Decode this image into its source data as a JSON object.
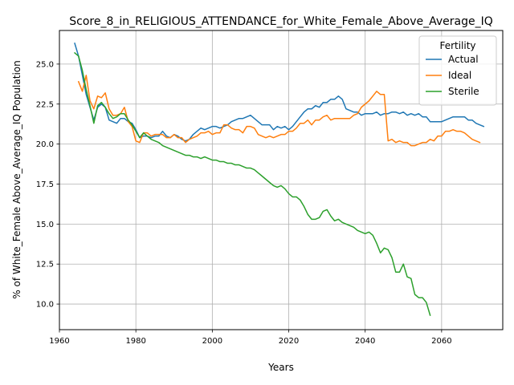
{
  "chart_data": {
    "type": "line",
    "title": "Score_8_in_RELIGIOUS_ATTENDANCE_for_White_Female_Above_Average_IQ",
    "xlabel": "Years",
    "ylabel": "% of White_Female Above_Average_IQ Population",
    "xlim": [
      1960,
      2076
    ],
    "ylim": [
      8.4,
      27.1
    ],
    "xticks": [
      1960,
      1980,
      2000,
      2020,
      2040,
      2060
    ],
    "xtick_labels": [
      "1960",
      "1980",
      "2000",
      "2020",
      "2040",
      "2060"
    ],
    "yticks": [
      10.0,
      12.5,
      15.0,
      17.5,
      20.0,
      22.5,
      25.0
    ],
    "ytick_labels": [
      "10.0",
      "12.5",
      "15.0",
      "17.5",
      "20.0",
      "22.5",
      "25.0"
    ],
    "grid": true,
    "legend": {
      "title": "Fertility",
      "placement": "top-right"
    },
    "series": [
      {
        "name": "Actual",
        "color": "#1f77b4",
        "points": [
          [
            1964,
            26.3
          ],
          [
            1965,
            25.5
          ],
          [
            1966,
            24.3
          ],
          [
            1967,
            23.1
          ],
          [
            1968,
            22.3
          ],
          [
            1969,
            21.5
          ],
          [
            1970,
            22.3
          ],
          [
            1971,
            22.5
          ],
          [
            1972,
            22.3
          ],
          [
            1973,
            21.5
          ],
          [
            1974,
            21.4
          ],
          [
            1975,
            21.3
          ],
          [
            1976,
            21.6
          ],
          [
            1977,
            21.6
          ],
          [
            1978,
            21.4
          ],
          [
            1979,
            21.3
          ],
          [
            1980,
            20.9
          ],
          [
            1981,
            20.4
          ],
          [
            1982,
            20.5
          ],
          [
            1983,
            20.5
          ],
          [
            1984,
            20.4
          ],
          [
            1985,
            20.5
          ],
          [
            1986,
            20.5
          ],
          [
            1987,
            20.8
          ],
          [
            1988,
            20.5
          ],
          [
            1989,
            20.4
          ],
          [
            1990,
            20.6
          ],
          [
            1991,
            20.5
          ],
          [
            1992,
            20.3
          ],
          [
            1993,
            20.2
          ],
          [
            1994,
            20.3
          ],
          [
            1995,
            20.6
          ],
          [
            1996,
            20.8
          ],
          [
            1997,
            21.0
          ],
          [
            1998,
            20.9
          ],
          [
            1999,
            21.0
          ],
          [
            2000,
            21.1
          ],
          [
            2001,
            21.1
          ],
          [
            2002,
            21.0
          ],
          [
            2003,
            21.1
          ],
          [
            2004,
            21.2
          ],
          [
            2005,
            21.4
          ],
          [
            2006,
            21.5
          ],
          [
            2007,
            21.6
          ],
          [
            2008,
            21.6
          ],
          [
            2009,
            21.7
          ],
          [
            2010,
            21.8
          ],
          [
            2011,
            21.6
          ],
          [
            2012,
            21.4
          ],
          [
            2013,
            21.2
          ],
          [
            2014,
            21.2
          ],
          [
            2015,
            21.2
          ],
          [
            2016,
            20.9
          ],
          [
            2017,
            21.1
          ],
          [
            2018,
            21.0
          ],
          [
            2019,
            21.1
          ],
          [
            2020,
            20.9
          ],
          [
            2021,
            21.1
          ],
          [
            2022,
            21.4
          ],
          [
            2023,
            21.7
          ],
          [
            2024,
            22.0
          ],
          [
            2025,
            22.2
          ],
          [
            2026,
            22.2
          ],
          [
            2027,
            22.4
          ],
          [
            2028,
            22.3
          ],
          [
            2029,
            22.6
          ],
          [
            2030,
            22.6
          ],
          [
            2031,
            22.8
          ],
          [
            2032,
            22.8
          ],
          [
            2033,
            23.0
          ],
          [
            2034,
            22.8
          ],
          [
            2035,
            22.2
          ],
          [
            2036,
            22.1
          ],
          [
            2037,
            22.0
          ],
          [
            2038,
            22.0
          ],
          [
            2039,
            21.8
          ],
          [
            2040,
            21.9
          ],
          [
            2041,
            21.9
          ],
          [
            2042,
            21.9
          ],
          [
            2043,
            22.0
          ],
          [
            2044,
            21.8
          ],
          [
            2045,
            21.9
          ],
          [
            2046,
            21.9
          ],
          [
            2047,
            22.0
          ],
          [
            2048,
            22.0
          ],
          [
            2049,
            21.9
          ],
          [
            2050,
            22.0
          ],
          [
            2051,
            21.8
          ],
          [
            2052,
            21.9
          ],
          [
            2053,
            21.8
          ],
          [
            2054,
            21.9
          ],
          [
            2055,
            21.7
          ],
          [
            2056,
            21.7
          ],
          [
            2057,
            21.4
          ],
          [
            2058,
            21.4
          ],
          [
            2059,
            21.4
          ],
          [
            2060,
            21.4
          ],
          [
            2061,
            21.5
          ],
          [
            2062,
            21.6
          ],
          [
            2063,
            21.7
          ],
          [
            2064,
            21.7
          ],
          [
            2065,
            21.7
          ],
          [
            2066,
            21.7
          ],
          [
            2067,
            21.5
          ],
          [
            2068,
            21.5
          ],
          [
            2069,
            21.3
          ],
          [
            2070,
            21.2
          ],
          [
            2071,
            21.1
          ]
        ]
      },
      {
        "name": "Ideal",
        "color": "#ff7f0e",
        "points": [
          [
            1965,
            23.9
          ],
          [
            1966,
            23.3
          ],
          [
            1967,
            24.3
          ],
          [
            1968,
            22.7
          ],
          [
            1969,
            22.2
          ],
          [
            1970,
            23.0
          ],
          [
            1971,
            22.9
          ],
          [
            1972,
            23.2
          ],
          [
            1973,
            22.2
          ],
          [
            1974,
            21.8
          ],
          [
            1975,
            21.8
          ],
          [
            1976,
            21.9
          ],
          [
            1977,
            22.3
          ],
          [
            1978,
            21.4
          ],
          [
            1979,
            21.1
          ],
          [
            1980,
            20.2
          ],
          [
            1981,
            20.1
          ],
          [
            1982,
            20.7
          ],
          [
            1983,
            20.7
          ],
          [
            1984,
            20.5
          ],
          [
            1985,
            20.6
          ],
          [
            1986,
            20.6
          ],
          [
            1987,
            20.6
          ],
          [
            1988,
            20.4
          ],
          [
            1989,
            20.4
          ],
          [
            1990,
            20.6
          ],
          [
            1991,
            20.4
          ],
          [
            1992,
            20.4
          ],
          [
            1993,
            20.1
          ],
          [
            1994,
            20.3
          ],
          [
            1995,
            20.4
          ],
          [
            1996,
            20.5
          ],
          [
            1997,
            20.7
          ],
          [
            1998,
            20.7
          ],
          [
            1999,
            20.8
          ],
          [
            2000,
            20.6
          ],
          [
            2001,
            20.7
          ],
          [
            2002,
            20.7
          ],
          [
            2003,
            21.2
          ],
          [
            2004,
            21.2
          ],
          [
            2005,
            21.0
          ],
          [
            2006,
            20.9
          ],
          [
            2007,
            20.9
          ],
          [
            2008,
            20.7
          ],
          [
            2009,
            21.1
          ],
          [
            2010,
            21.1
          ],
          [
            2011,
            21.0
          ],
          [
            2012,
            20.6
          ],
          [
            2013,
            20.5
          ],
          [
            2014,
            20.4
          ],
          [
            2015,
            20.5
          ],
          [
            2016,
            20.4
          ],
          [
            2017,
            20.5
          ],
          [
            2018,
            20.6
          ],
          [
            2019,
            20.6
          ],
          [
            2020,
            20.8
          ],
          [
            2021,
            20.8
          ],
          [
            2022,
            21.0
          ],
          [
            2023,
            21.3
          ],
          [
            2024,
            21.3
          ],
          [
            2025,
            21.5
          ],
          [
            2026,
            21.2
          ],
          [
            2027,
            21.5
          ],
          [
            2028,
            21.5
          ],
          [
            2029,
            21.7
          ],
          [
            2030,
            21.8
          ],
          [
            2031,
            21.5
          ],
          [
            2032,
            21.6
          ],
          [
            2033,
            21.6
          ],
          [
            2034,
            21.6
          ],
          [
            2035,
            21.6
          ],
          [
            2036,
            21.6
          ],
          [
            2037,
            21.8
          ],
          [
            2038,
            21.9
          ],
          [
            2039,
            22.3
          ],
          [
            2040,
            22.5
          ],
          [
            2041,
            22.7
          ],
          [
            2042,
            23.0
          ],
          [
            2043,
            23.3
          ],
          [
            2044,
            23.1
          ],
          [
            2045,
            23.1
          ],
          [
            2046,
            20.2
          ],
          [
            2047,
            20.3
          ],
          [
            2048,
            20.1
          ],
          [
            2049,
            20.2
          ],
          [
            2050,
            20.1
          ],
          [
            2051,
            20.1
          ],
          [
            2052,
            19.9
          ],
          [
            2053,
            19.9
          ],
          [
            2054,
            20.0
          ],
          [
            2055,
            20.1
          ],
          [
            2056,
            20.1
          ],
          [
            2057,
            20.3
          ],
          [
            2058,
            20.2
          ],
          [
            2059,
            20.5
          ],
          [
            2060,
            20.5
          ],
          [
            2061,
            20.8
          ],
          [
            2062,
            20.8
          ],
          [
            2063,
            20.9
          ],
          [
            2064,
            20.8
          ],
          [
            2065,
            20.8
          ],
          [
            2066,
            20.7
          ],
          [
            2067,
            20.5
          ],
          [
            2068,
            20.3
          ],
          [
            2069,
            20.2
          ],
          [
            2070,
            20.1
          ]
        ]
      },
      {
        "name": "Sterile",
        "color": "#2ca02c",
        "points": [
          [
            1964,
            25.7
          ],
          [
            1965,
            25.5
          ],
          [
            1966,
            24.6
          ],
          [
            1967,
            23.4
          ],
          [
            1968,
            22.4
          ],
          [
            1969,
            21.3
          ],
          [
            1970,
            22.4
          ],
          [
            1971,
            22.6
          ],
          [
            1972,
            22.3
          ],
          [
            1973,
            21.9
          ],
          [
            1974,
            21.6
          ],
          [
            1975,
            21.7
          ],
          [
            1976,
            21.9
          ],
          [
            1977,
            21.9
          ],
          [
            1978,
            21.5
          ],
          [
            1979,
            21.2
          ],
          [
            1980,
            20.8
          ],
          [
            1981,
            20.4
          ],
          [
            1982,
            20.7
          ],
          [
            1983,
            20.5
          ],
          [
            1984,
            20.3
          ],
          [
            1985,
            20.2
          ],
          [
            1986,
            20.1
          ],
          [
            1987,
            19.9
          ],
          [
            1988,
            19.8
          ],
          [
            1989,
            19.7
          ],
          [
            1990,
            19.6
          ],
          [
            1991,
            19.5
          ],
          [
            1992,
            19.4
          ],
          [
            1993,
            19.3
          ],
          [
            1994,
            19.3
          ],
          [
            1995,
            19.2
          ],
          [
            1996,
            19.2
          ],
          [
            1997,
            19.1
          ],
          [
            1998,
            19.2
          ],
          [
            1999,
            19.1
          ],
          [
            2000,
            19.0
          ],
          [
            2001,
            19.0
          ],
          [
            2002,
            18.9
          ],
          [
            2003,
            18.9
          ],
          [
            2004,
            18.8
          ],
          [
            2005,
            18.8
          ],
          [
            2006,
            18.7
          ],
          [
            2007,
            18.7
          ],
          [
            2008,
            18.6
          ],
          [
            2009,
            18.5
          ],
          [
            2010,
            18.5
          ],
          [
            2011,
            18.4
          ],
          [
            2012,
            18.2
          ],
          [
            2013,
            18.0
          ],
          [
            2014,
            17.8
          ],
          [
            2015,
            17.6
          ],
          [
            2016,
            17.4
          ],
          [
            2017,
            17.3
          ],
          [
            2018,
            17.4
          ],
          [
            2019,
            17.2
          ],
          [
            2020,
            16.9
          ],
          [
            2021,
            16.7
          ],
          [
            2022,
            16.7
          ],
          [
            2023,
            16.5
          ],
          [
            2024,
            16.1
          ],
          [
            2025,
            15.6
          ],
          [
            2026,
            15.3
          ],
          [
            2027,
            15.3
          ],
          [
            2028,
            15.4
          ],
          [
            2029,
            15.8
          ],
          [
            2030,
            15.9
          ],
          [
            2031,
            15.5
          ],
          [
            2032,
            15.2
          ],
          [
            2033,
            15.3
          ],
          [
            2034,
            15.1
          ],
          [
            2035,
            15.0
          ],
          [
            2036,
            14.9
          ],
          [
            2037,
            14.8
          ],
          [
            2038,
            14.6
          ],
          [
            2039,
            14.5
          ],
          [
            2040,
            14.4
          ],
          [
            2041,
            14.5
          ],
          [
            2042,
            14.3
          ],
          [
            2043,
            13.8
          ],
          [
            2044,
            13.2
          ],
          [
            2045,
            13.5
          ],
          [
            2046,
            13.4
          ],
          [
            2047,
            12.9
          ],
          [
            2048,
            12.0
          ],
          [
            2049,
            12.0
          ],
          [
            2050,
            12.5
          ],
          [
            2051,
            11.7
          ],
          [
            2052,
            11.6
          ],
          [
            2053,
            10.6
          ],
          [
            2054,
            10.4
          ],
          [
            2055,
            10.4
          ],
          [
            2056,
            10.1
          ],
          [
            2057,
            9.3
          ]
        ]
      }
    ]
  }
}
